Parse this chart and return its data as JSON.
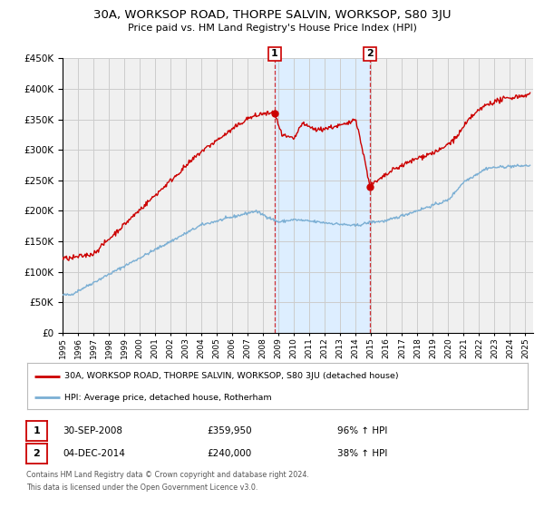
{
  "title": "30A, WORKSOP ROAD, THORPE SALVIN, WORKSOP, S80 3JU",
  "subtitle": "Price paid vs. HM Land Registry's House Price Index (HPI)",
  "red_label": "30A, WORKSOP ROAD, THORPE SALVIN, WORKSOP, S80 3JU (detached house)",
  "blue_label": "HPI: Average price, detached house, Rotherham",
  "point1_date": "30-SEP-2008",
  "point1_price": 359950,
  "point1_hpi": "96% ↑ HPI",
  "point2_date": "04-DEC-2014",
  "point2_price": 240000,
  "point2_hpi": "38% ↑ HPI",
  "footer_line1": "Contains HM Land Registry data © Crown copyright and database right 2024.",
  "footer_line2": "This data is licensed under the Open Government Licence v3.0.",
  "red_color": "#cc0000",
  "blue_color": "#7bafd4",
  "background_color": "#ffffff",
  "plot_bg_color": "#f0f0f0",
  "shade_color": "#ddeeff",
  "grid_color": "#cccccc",
  "ylim": [
    0,
    450000
  ],
  "yticks": [
    0,
    50000,
    100000,
    150000,
    200000,
    250000,
    300000,
    350000,
    400000,
    450000
  ],
  "xlabel_years": [
    "1995",
    "1996",
    "1997",
    "1998",
    "1999",
    "2000",
    "2001",
    "2002",
    "2003",
    "2004",
    "2005",
    "2006",
    "2007",
    "2008",
    "2009",
    "2010",
    "2011",
    "2012",
    "2013",
    "2014",
    "2015",
    "2016",
    "2017",
    "2018",
    "2019",
    "2020",
    "2021",
    "2022",
    "2023",
    "2024",
    "2025"
  ],
  "point1_x": 2008.75,
  "point2_x": 2014.92,
  "xmin": 1995,
  "xmax": 2025.5
}
